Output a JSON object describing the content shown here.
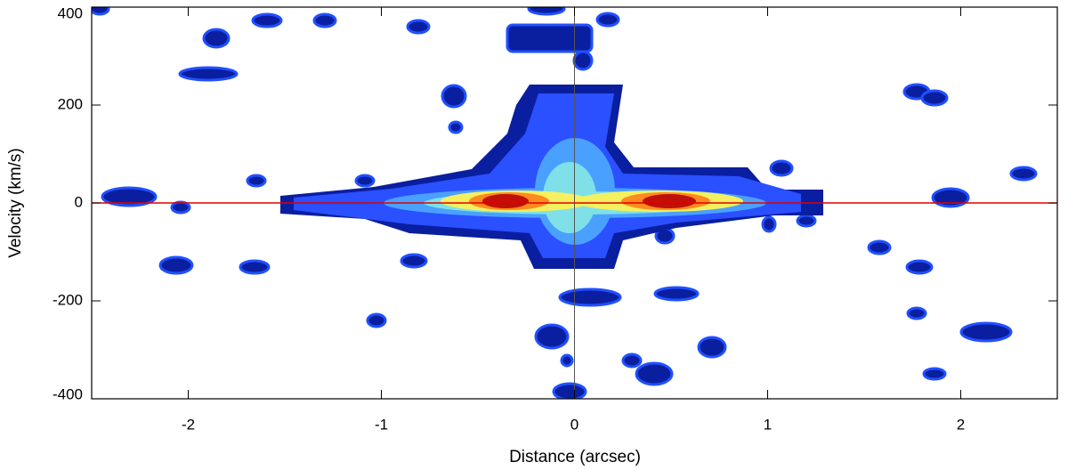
{
  "chart_data": {
    "type": "contour",
    "x_label": "Distance (arcsec)",
    "y_label": "Velocity (km/s)",
    "xlim": [
      -2.5,
      2.5
    ],
    "xticks": [
      -2,
      -1,
      0,
      1,
      2
    ],
    "ylim": [
      -400,
      400
    ],
    "yticks": [
      -400,
      -200,
      0,
      200,
      400
    ],
    "hline": 0,
    "hline_color": "#e00000",
    "vline": 0,
    "vline_color": "#555555"
  }
}
